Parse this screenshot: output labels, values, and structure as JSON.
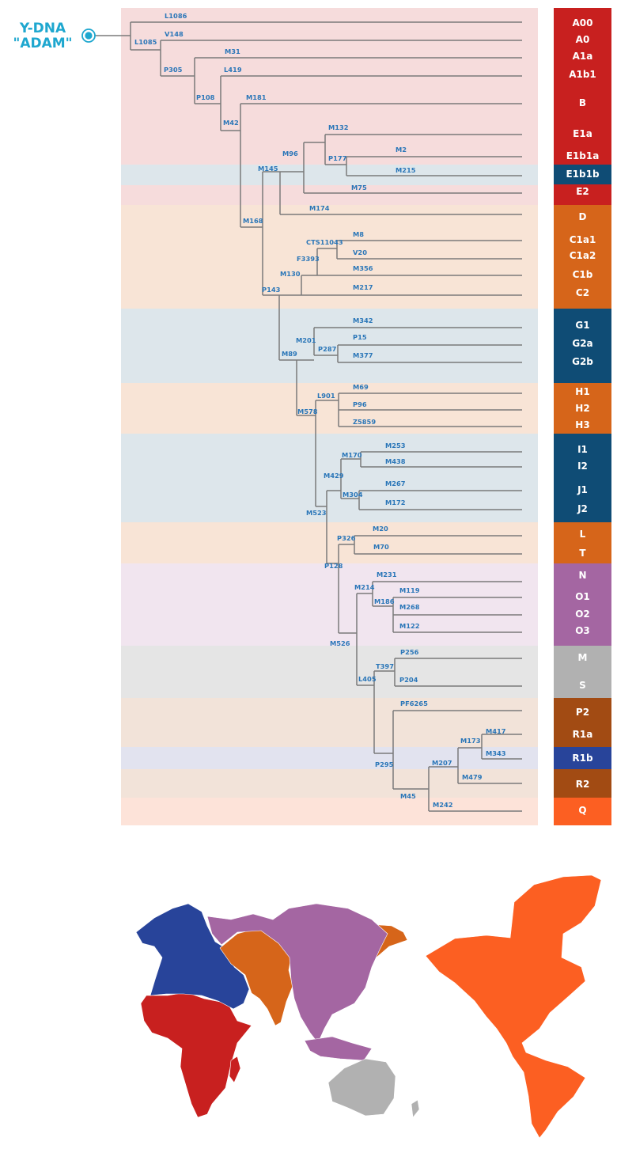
{
  "root": {
    "line1": "Y-DNA",
    "line2": "\"ADAM\"",
    "color": "#1ea7cf"
  },
  "colors": {
    "line": "#7a7a7a",
    "marker_text": "#2a76b8",
    "red": "#c8201f",
    "darkblue": "#0f4c75",
    "orange": "#d6651a",
    "purple": "#a466a2",
    "gray": "#b1b1b1",
    "brown": "#a24b13",
    "royalblue": "#28449a",
    "brightorange": "#fc5f22",
    "band_pink": "#f6dcdc",
    "band_lightblue": "#dde6eb",
    "band_peach": "#f8e4d6",
    "band_lavender": "#f1e5ef",
    "band_gray": "#e5e5e5",
    "band_tan": "#f2e3d9",
    "band_periwinkle": "#e2e3ef",
    "band_salmon": "#fde3d9"
  },
  "haplogroups": [
    {
      "label": "A00",
      "color": "red"
    },
    {
      "label": "A0",
      "color": "red"
    },
    {
      "label": "A1a",
      "color": "red"
    },
    {
      "label": "A1b1",
      "color": "red"
    },
    {
      "label": "B",
      "color": "red"
    },
    {
      "label": "E1a",
      "color": "red"
    },
    {
      "label": "E1b1a",
      "color": "red"
    },
    {
      "label": "E1b1b",
      "color": "darkblue"
    },
    {
      "label": "E2",
      "color": "red"
    },
    {
      "label": "D",
      "color": "orange"
    },
    {
      "label": "C1a1",
      "color": "orange"
    },
    {
      "label": "C1a2",
      "color": "orange"
    },
    {
      "label": "C1b",
      "color": "orange"
    },
    {
      "label": "C2",
      "color": "orange"
    },
    {
      "label": "G1",
      "color": "darkblue"
    },
    {
      "label": "G2a",
      "color": "darkblue"
    },
    {
      "label": "G2b",
      "color": "darkblue"
    },
    {
      "label": "H1",
      "color": "orange"
    },
    {
      "label": "H2",
      "color": "orange"
    },
    {
      "label": "H3",
      "color": "orange"
    },
    {
      "label": "I1",
      "color": "darkblue"
    },
    {
      "label": "I2",
      "color": "darkblue"
    },
    {
      "label": "J1",
      "color": "darkblue"
    },
    {
      "label": "J2",
      "color": "darkblue"
    },
    {
      "label": "L",
      "color": "orange"
    },
    {
      "label": "T",
      "color": "orange"
    },
    {
      "label": "N",
      "color": "purple"
    },
    {
      "label": "O1",
      "color": "purple"
    },
    {
      "label": "O2",
      "color": "purple"
    },
    {
      "label": "O3",
      "color": "purple"
    },
    {
      "label": "M",
      "color": "gray"
    },
    {
      "label": "S",
      "color": "gray"
    },
    {
      "label": "P2",
      "color": "brown"
    },
    {
      "label": "R1a",
      "color": "brown"
    },
    {
      "label": "R1b",
      "color": "royalblue"
    },
    {
      "label": "R2",
      "color": "brown"
    },
    {
      "label": "Q",
      "color": "brightorange"
    }
  ],
  "markers": [
    "L1086",
    "L1085",
    "V148",
    "P305",
    "M31",
    "L419",
    "P108",
    "M181",
    "M42",
    "M132",
    "M96",
    "M2",
    "P177",
    "M215",
    "M145",
    "M75",
    "M174",
    "M168",
    "CTS11043",
    "M8",
    "F3393",
    "V20",
    "M130",
    "M356",
    "P143",
    "M217",
    "M342",
    "M201",
    "P15",
    "P287",
    "M377",
    "M89",
    "L901",
    "M69",
    "P96",
    "M578",
    "Z5859",
    "M253",
    "M170",
    "M438",
    "M429",
    "M267",
    "M304",
    "M172",
    "M523",
    "M20",
    "P326",
    "M70",
    "P128",
    "M231",
    "M214",
    "M119",
    "M186",
    "M268",
    "M122",
    "M526",
    "P256",
    "T397",
    "L405",
    "P204",
    "PF6265",
    "M417",
    "M173",
    "M343",
    "P295",
    "M207",
    "M479",
    "M45",
    "M242"
  ],
  "map": {
    "regions": [
      {
        "name": "africa",
        "color": "red"
      },
      {
        "name": "europe-west-asia",
        "color": "royalblue"
      },
      {
        "name": "central-south-asia",
        "color": "orange"
      },
      {
        "name": "east-asia",
        "color": "purple"
      },
      {
        "name": "oceania",
        "color": "gray"
      },
      {
        "name": "americas",
        "color": "brightorange"
      }
    ]
  }
}
